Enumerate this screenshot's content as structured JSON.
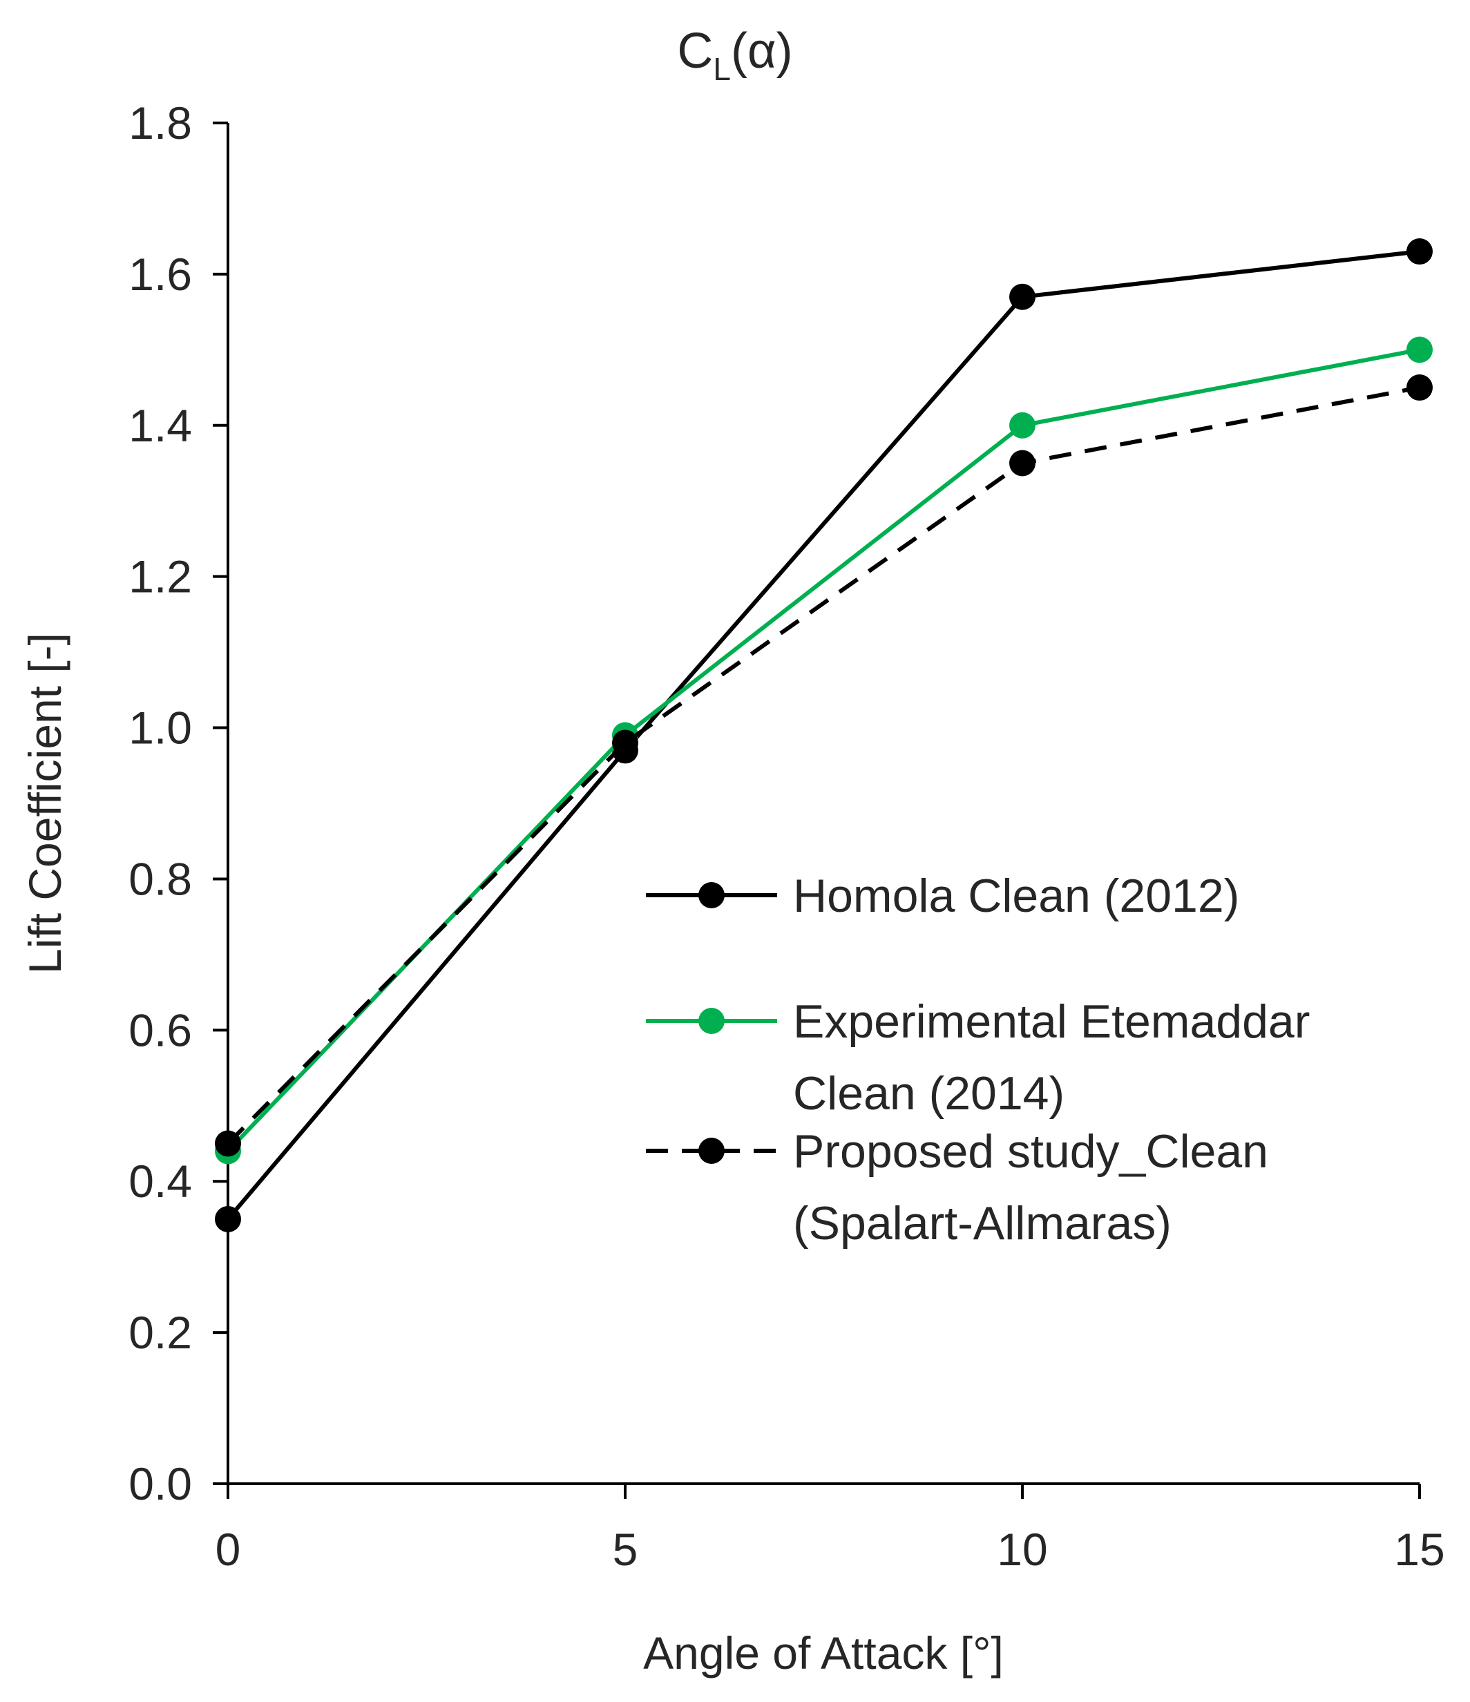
{
  "chart_data": {
    "type": "line",
    "title": {
      "main": "C",
      "subscript": "L",
      "suffix": "(α)"
    },
    "xlabel": "Angle of Attack [°]",
    "ylabel": "Lift Coefficient [-]",
    "x": [
      0,
      5,
      10,
      15
    ],
    "xticks": [
      "0",
      "5",
      "10",
      "15"
    ],
    "yticks": [
      "0.0",
      "0.2",
      "0.4",
      "0.6",
      "0.8",
      "1.0",
      "1.2",
      "1.4",
      "1.6",
      "1.8"
    ],
    "xlim": [
      0,
      15
    ],
    "ylim": [
      0,
      1.8
    ],
    "grid": false,
    "legend_position": "right-middle",
    "series": [
      {
        "name": "Homola Clean (2012)",
        "legend_lines": [
          "Homola Clean (2012)"
        ],
        "values": [
          0.35,
          0.97,
          1.57,
          1.63
        ],
        "color": "#000000",
        "dashed": false
      },
      {
        "name": "Experimental Etemaddar Clean (2014)",
        "legend_lines": [
          "Experimental Etemaddar",
          "Clean (2014)"
        ],
        "values": [
          0.44,
          0.99,
          1.4,
          1.5
        ],
        "color": "#00b050",
        "dashed": false
      },
      {
        "name": "Proposed study_Clean (Spalart-Allmaras)",
        "legend_lines": [
          "Proposed study_Clean",
          "(Spalart-Allmaras)"
        ],
        "values": [
          0.45,
          0.98,
          1.35,
          1.45
        ],
        "color": "#000000",
        "dashed": true
      }
    ]
  }
}
